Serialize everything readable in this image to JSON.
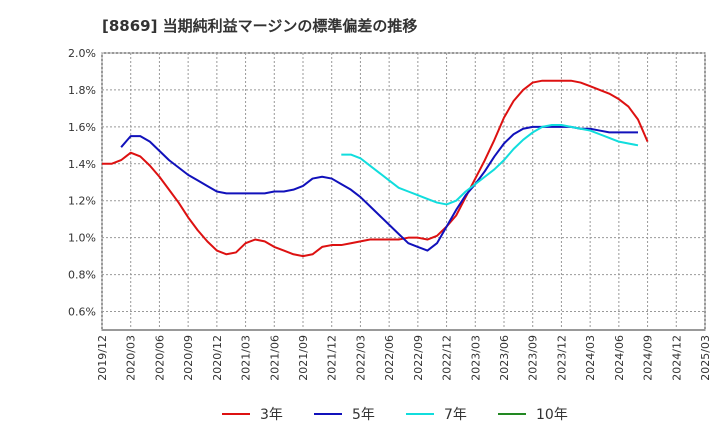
{
  "chart_data": {
    "type": "line",
    "title": "[8869]  当期純利益マージンの標準偏差の推移",
    "xlabel": "",
    "ylabel": "",
    "ylim": [
      0.5,
      2.0
    ],
    "yticks": [
      "0.6%",
      "0.8%",
      "1.0%",
      "1.2%",
      "1.4%",
      "1.6%",
      "1.8%",
      "2.0%"
    ],
    "ytick_values": [
      0.6,
      0.8,
      1.0,
      1.2,
      1.4,
      1.6,
      1.8,
      2.0
    ],
    "xticks": [
      "2019/12",
      "2020/03",
      "2020/06",
      "2020/09",
      "2020/12",
      "2021/03",
      "2021/06",
      "2021/09",
      "2021/12",
      "2022/03",
      "2022/06",
      "2022/09",
      "2022/12",
      "2023/03",
      "2023/06",
      "2023/09",
      "2023/12",
      "2024/03",
      "2024/06",
      "2024/09",
      "2024/12",
      "2025/03"
    ],
    "grid": true,
    "legend_position": "bottom",
    "series": [
      {
        "name": "3年",
        "color": "#dd1111",
        "start_index": 0,
        "values": [
          1.4,
          1.4,
          1.42,
          1.46,
          1.44,
          1.39,
          1.33,
          1.26,
          1.19,
          1.11,
          1.04,
          0.98,
          0.93,
          0.91,
          0.92,
          0.97,
          0.99,
          0.98,
          0.95,
          0.93,
          0.91,
          0.9,
          0.91,
          0.95,
          0.96,
          0.96,
          0.97,
          0.98,
          0.99,
          0.99,
          0.99,
          0.99,
          1.0,
          1.0,
          0.99,
          1.01,
          1.06,
          1.12,
          1.22,
          1.32,
          1.42,
          1.53,
          1.65,
          1.74,
          1.8,
          1.84,
          1.85,
          1.85,
          1.85,
          1.85,
          1.84,
          1.82,
          1.8,
          1.78,
          1.75,
          1.71,
          1.64,
          1.52
        ]
      },
      {
        "name": "5年",
        "color": "#1111bb",
        "start_index": 2,
        "values": [
          1.49,
          1.55,
          1.55,
          1.52,
          1.47,
          1.42,
          1.38,
          1.34,
          1.31,
          1.28,
          1.25,
          1.24,
          1.24,
          1.24,
          1.24,
          1.24,
          1.25,
          1.25,
          1.26,
          1.28,
          1.32,
          1.33,
          1.32,
          1.29,
          1.26,
          1.22,
          1.17,
          1.12,
          1.07,
          1.02,
          0.97,
          0.95,
          0.93,
          0.97,
          1.06,
          1.15,
          1.23,
          1.29,
          1.36,
          1.44,
          1.51,
          1.56,
          1.59,
          1.6,
          1.6,
          1.6,
          1.6,
          1.6,
          1.59,
          1.59,
          1.58,
          1.57,
          1.57,
          1.57,
          1.57
        ]
      },
      {
        "name": "7年",
        "color": "#11dddd",
        "start_index": 25,
        "values": [
          1.45,
          1.45,
          1.43,
          1.39,
          1.35,
          1.31,
          1.27,
          1.25,
          1.23,
          1.21,
          1.19,
          1.18,
          1.2,
          1.25,
          1.29,
          1.33,
          1.37,
          1.42,
          1.48,
          1.53,
          1.57,
          1.6,
          1.61,
          1.61,
          1.6,
          1.59,
          1.58,
          1.56,
          1.54,
          1.52,
          1.51,
          1.5
        ]
      },
      {
        "name": "10年",
        "color": "#228822",
        "start_index": 0,
        "values": []
      }
    ]
  }
}
